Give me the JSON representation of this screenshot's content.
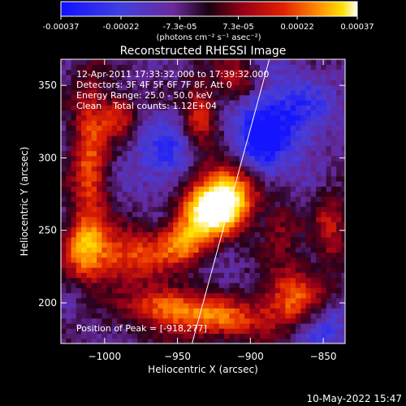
{
  "chart_data": {
    "type": "heatmap",
    "title": "Reconstructed RHESSI Image",
    "xlabel": "Heliocentric X (arcsec)",
    "ylabel": "Heliocentric Y (arcsec)",
    "xlim": [
      -1030,
      -835
    ],
    "ylim": [
      172,
      368
    ],
    "xticks": [
      -1000,
      -950,
      -900,
      -850
    ],
    "xtick_labels": [
      "−1000",
      "−950",
      "−900",
      "−850"
    ],
    "yticks": [
      200,
      250,
      300,
      350
    ],
    "ytick_labels": [
      "200",
      "250",
      "300",
      "350"
    ],
    "colorbar": {
      "range": [
        -0.00037,
        0.00037
      ],
      "ticks": [
        -0.00037,
        -0.00022,
        -7.3e-05,
        7.3e-05,
        0.00022,
        0.00037
      ],
      "tick_labels": [
        "-0.00037",
        "-0.00022",
        "-7.3e-05",
        "7.3e-05",
        "0.00022",
        "0.00037"
      ],
      "unit_label": "(photons cm⁻² s⁻¹ asec⁻²)",
      "colormap": "blue-purple-red-yellow-white"
    },
    "annotations": {
      "time_range": "12-Apr-2011 17:33:32.000 to 17:39:32.000",
      "detectors": "Detectors: 3F 4F 5F 6F 7F 8F, Att 0",
      "energy_range": "Energy Range: 25.0 - 50.0 keV",
      "method": "Clean    Total counts: 1.12E+04",
      "peak": "Position of Peak = [-918,277]"
    },
    "peak": {
      "x": -918,
      "y": 277
    },
    "limb_line": {
      "x1": -940,
      "y1": 172,
      "x2": -887,
      "y2": 368
    },
    "bright_regions": [
      {
        "x": -915,
        "y": 276,
        "sx": 18,
        "sy": 16,
        "amp": 1.0
      },
      {
        "x": -928,
        "y": 262,
        "sx": 14,
        "sy": 11,
        "amp": 0.75
      },
      {
        "x": -945,
        "y": 242,
        "sx": 12,
        "sy": 10,
        "amp": 0.6
      },
      {
        "x": -1010,
        "y": 300,
        "sx": 9,
        "sy": 40,
        "amp": 0.55
      },
      {
        "x": -985,
        "y": 232,
        "sx": 22,
        "sy": 14,
        "amp": 0.55
      },
      {
        "x": -935,
        "y": 330,
        "sx": 8,
        "sy": 16,
        "amp": 0.5
      },
      {
        "x": -910,
        "y": 355,
        "sx": 10,
        "sy": 10,
        "amp": 0.45
      },
      {
        "x": -990,
        "y": 330,
        "sx": 8,
        "sy": 10,
        "amp": 0.45
      },
      {
        "x": -925,
        "y": 190,
        "sx": 30,
        "sy": 10,
        "amp": 0.6
      },
      {
        "x": -870,
        "y": 205,
        "sx": 14,
        "sy": 14,
        "amp": 0.55
      },
      {
        "x": -960,
        "y": 200,
        "sx": 16,
        "sy": 8,
        "amp": 0.45
      },
      {
        "x": -1015,
        "y": 240,
        "sx": 10,
        "sy": 14,
        "amp": 0.45
      },
      {
        "x": -880,
        "y": 250,
        "sx": 10,
        "sy": 14,
        "amp": 0.3
      },
      {
        "x": -845,
        "y": 250,
        "sx": 8,
        "sy": 20,
        "amp": 0.35
      }
    ],
    "dim_regions": [
      {
        "x": -895,
        "y": 300,
        "sx": 14,
        "sy": 30,
        "amp": -0.45
      },
      {
        "x": -870,
        "y": 330,
        "sx": 20,
        "sy": 20,
        "amp": -0.3
      },
      {
        "x": -955,
        "y": 300,
        "sx": 18,
        "sy": 20,
        "amp": -0.3
      },
      {
        "x": -850,
        "y": 185,
        "sx": 14,
        "sy": 12,
        "amp": -0.3
      }
    ]
  },
  "footer": {
    "date": "10-May-2022 15:47"
  }
}
